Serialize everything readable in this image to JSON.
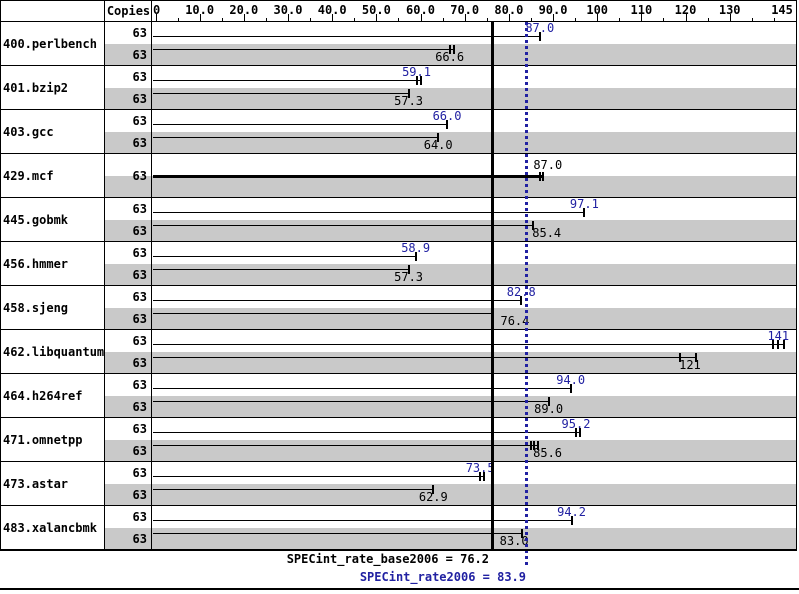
{
  "table": {
    "copies_header": "Copies"
  },
  "axis": {
    "min": 0,
    "max": 145,
    "labeled_ticks": [
      {
        "value": 0,
        "label": "0"
      },
      {
        "value": 10,
        "label": "10.0"
      },
      {
        "value": 20,
        "label": "20.0"
      },
      {
        "value": 30,
        "label": "30.0"
      },
      {
        "value": 40,
        "label": "40.0"
      },
      {
        "value": 50,
        "label": "50.0"
      },
      {
        "value": 60,
        "label": "60.0"
      },
      {
        "value": 70,
        "label": "70.0"
      },
      {
        "value": 80,
        "label": "80.0"
      },
      {
        "value": 90,
        "label": "90.0"
      },
      {
        "value": 100,
        "label": "100"
      },
      {
        "value": 110,
        "label": "110"
      },
      {
        "value": 120,
        "label": "120"
      },
      {
        "value": 130,
        "label": "130"
      },
      {
        "value": 145,
        "label": "145"
      }
    ],
    "major_tick_values": [
      0,
      10,
      20,
      30,
      40,
      50,
      60,
      70,
      80,
      90,
      100,
      110,
      120,
      130
    ],
    "minor_tick_values": [
      5,
      15,
      25,
      35,
      45,
      55,
      65,
      75,
      85,
      95,
      105,
      115,
      125,
      135,
      140
    ]
  },
  "chart_data": {
    "type": "bar",
    "orientation": "horizontal",
    "xlim": [
      0,
      145
    ],
    "categories": [
      "400.perlbench",
      "401.bzip2",
      "403.gcc",
      "429.mcf",
      "445.gobmk",
      "456.hmmer",
      "458.sjeng",
      "462.libquantum",
      "464.h264ref",
      "471.omnetpp",
      "473.astar",
      "483.xalancbmk"
    ],
    "copies_per_benchmark": "63",
    "series": [
      {
        "name": "peak (SPECint_rate2006)",
        "values": [
          87.0,
          59.1,
          66.0,
          87.0,
          97.1,
          58.9,
          82.8,
          141,
          94.0,
          95.2,
          73.5,
          94.2
        ]
      },
      {
        "name": "base (SPECint_rate_base2006)",
        "values": [
          66.6,
          57.3,
          64.0,
          87.0,
          85.4,
          57.3,
          76.4,
          121,
          89.0,
          85.6,
          62.9,
          83.0
        ]
      }
    ],
    "reference_lines": [
      {
        "name": "base mean",
        "value": 76.2,
        "style": "solid-black"
      },
      {
        "name": "peak mean",
        "value": 83.9,
        "style": "dotted-blue"
      }
    ],
    "benchmarks": [
      {
        "name": "400.perlbench",
        "copies": [
          "63",
          "63"
        ],
        "combined": false,
        "peak": {
          "value": 87.0,
          "label": "87.0",
          "marks": [
            87.0
          ],
          "dx": 0
        },
        "base": {
          "value": 66.6,
          "label": "66.6",
          "marks": [
            66.6,
            67.5
          ],
          "dx": 0
        }
      },
      {
        "name": "401.bzip2",
        "copies": [
          "63",
          "63"
        ],
        "combined": false,
        "peak": {
          "value": 59.1,
          "label": "59.1",
          "marks": [
            59.1,
            60.0
          ],
          "dx": 0
        },
        "base": {
          "value": 57.3,
          "label": "57.3",
          "marks": [
            57.3
          ],
          "dx": 0
        }
      },
      {
        "name": "403.gcc",
        "copies": [
          "63",
          "63"
        ],
        "combined": false,
        "peak": {
          "value": 66.0,
          "label": "66.0",
          "marks": [
            66.0
          ],
          "dx": 0
        },
        "base": {
          "value": 64.0,
          "label": "64.0",
          "marks": [
            64.0
          ],
          "dx": 0
        }
      },
      {
        "name": "429.mcf",
        "copies": [
          "63"
        ],
        "combined": true,
        "peak": {
          "value": 87.0,
          "label": "87.0",
          "marks": [
            87.0,
            87.8
          ],
          "dx": 8
        },
        "base": {
          "value": 87.0,
          "label": "",
          "marks": [],
          "dx": 0
        }
      },
      {
        "name": "445.gobmk",
        "copies": [
          "63",
          "63"
        ],
        "combined": false,
        "peak": {
          "value": 97.1,
          "label": "97.1",
          "marks": [
            97.1
          ],
          "dx": 0
        },
        "base": {
          "value": 85.4,
          "label": "85.4",
          "marks": [
            85.4
          ],
          "dx": 14
        }
      },
      {
        "name": "456.hmmer",
        "copies": [
          "63",
          "63"
        ],
        "combined": false,
        "peak": {
          "value": 58.9,
          "label": "58.9",
          "marks": [
            58.9
          ],
          "dx": 0
        },
        "base": {
          "value": 57.3,
          "label": "57.3",
          "marks": [
            57.3
          ],
          "dx": 0
        }
      },
      {
        "name": "458.sjeng",
        "copies": [
          "63",
          "63"
        ],
        "combined": false,
        "peak": {
          "value": 82.8,
          "label": "82.8",
          "marks": [
            82.8
          ],
          "dx": 0
        },
        "base": {
          "value": 76.4,
          "label": "76.4",
          "marks": [
            76.4
          ],
          "dx": 22
        }
      },
      {
        "name": "462.libquantum",
        "copies": [
          "63",
          "63"
        ],
        "combined": false,
        "peak": {
          "value": 141,
          "label": "141",
          "marks": [
            139.8,
            141.0,
            142.2
          ],
          "dx": 0
        },
        "base": {
          "value": 121,
          "label": "121",
          "marks": [
            118.7,
            122.3
          ],
          "dx": 0
        }
      },
      {
        "name": "464.h264ref",
        "copies": [
          "63",
          "63"
        ],
        "combined": false,
        "peak": {
          "value": 94.0,
          "label": "94.0",
          "marks": [
            94.0
          ],
          "dx": 0
        },
        "base": {
          "value": 89.0,
          "label": "89.0",
          "marks": [
            89.0
          ],
          "dx": 0
        }
      },
      {
        "name": "471.omnetpp",
        "copies": [
          "63",
          "63"
        ],
        "combined": false,
        "peak": {
          "value": 95.2,
          "label": "95.2",
          "marks": [
            95.2,
            96.1
          ],
          "dx": 0
        },
        "base": {
          "value": 85.6,
          "label": "85.6",
          "marks": [
            84.9,
            85.7,
            86.5
          ],
          "dx": 14
        }
      },
      {
        "name": "473.astar",
        "copies": [
          "63",
          "63"
        ],
        "combined": false,
        "peak": {
          "value": 73.5,
          "label": "73.5",
          "marks": [
            73.5,
            74.4
          ],
          "dx": 0
        },
        "base": {
          "value": 62.9,
          "label": "62.9",
          "marks": [
            62.9
          ],
          "dx": 0
        }
      },
      {
        "name": "483.xalancbmk",
        "copies": [
          "63",
          "63"
        ],
        "combined": false,
        "peak": {
          "value": 94.2,
          "label": "94.2",
          "marks": [
            94.2
          ],
          "dx": 0
        },
        "base": {
          "value": 83.0,
          "label": "83.0",
          "marks": [
            83.0
          ],
          "dx": -8
        }
      }
    ]
  },
  "summary": {
    "base_text": "SPECint_rate_base2006 = 76.2",
    "base_value": 76.2,
    "peak_text": "SPECint_rate2006 = 83.9",
    "peak_value": 83.9
  },
  "colors": {
    "peak_blue": "#2121a2",
    "band_gray": "#c9c9c9",
    "bar_black": "#000000",
    "background": "#ffffff"
  }
}
